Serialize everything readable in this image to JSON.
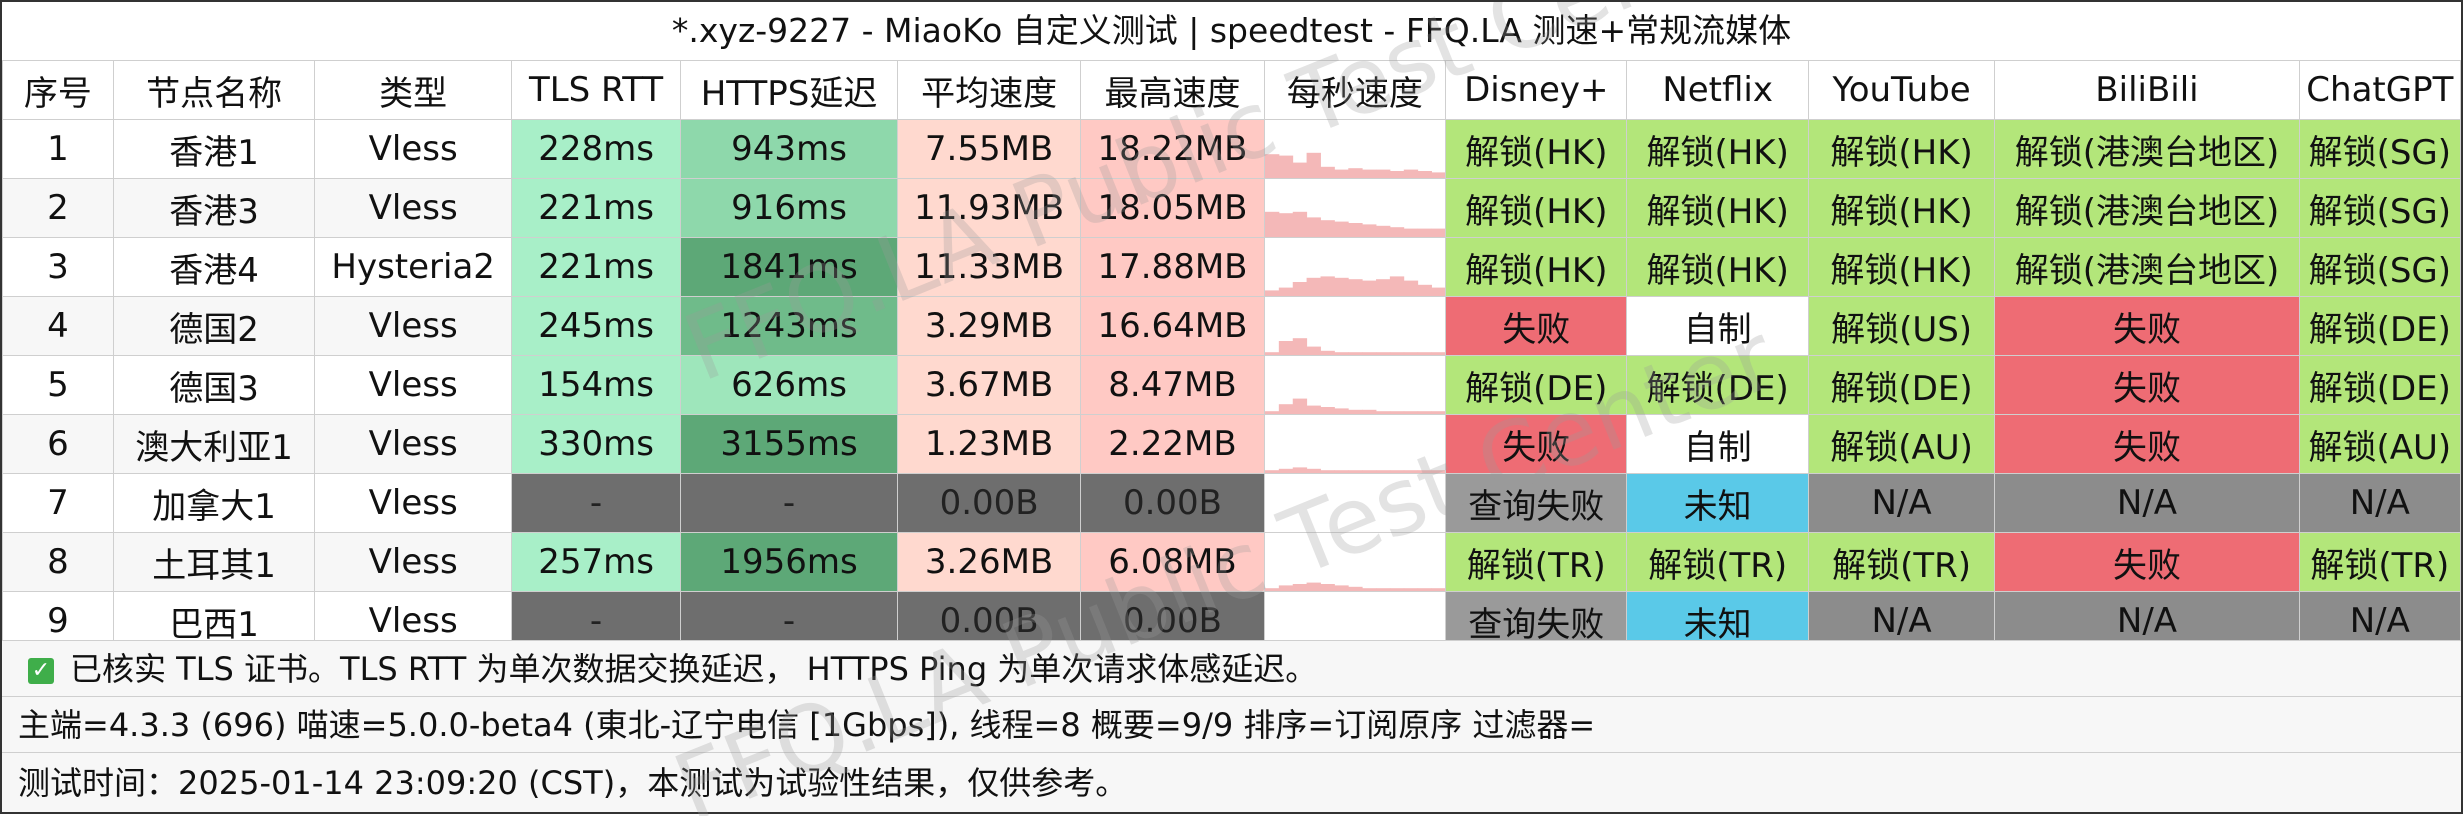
{
  "window": {
    "title": "*.xyz-9227 - MiaoKo 自定义测试 | speedtest - FFQ.LA 测速+常规流媒体"
  },
  "colors": {
    "tls_bg": "#a8efc8",
    "https_shades": [
      "#9ee6bb",
      "#8ed8ab",
      "#5da877",
      "#6fbb8a",
      "#3a8a59"
    ],
    "avg_bg": "#ffd9cf",
    "max_bg": "#ffc9c4",
    "fail_gray": "#6e6e6e",
    "unlock_green": "#b3e67a",
    "fail_red": "#ee6c74",
    "self_white": "#ffffff",
    "unknown_blue": "#5ac9e8",
    "na_gray": "#8c8c8c",
    "query_fail_gray": "#9a9a9a",
    "spark": "#f4b8b8"
  },
  "table": {
    "headers": [
      "序号",
      "节点名称",
      "类型",
      "TLS RTT",
      "HTTPS延迟",
      "平均速度",
      "最高速度",
      "每秒速度",
      "Disney+",
      "Netflix",
      "YouTube",
      "BiliBili",
      "ChatGPT"
    ],
    "rows": [
      {
        "id": "1",
        "name": "香港1",
        "type": "Vless",
        "tls": "228ms",
        "https": "943ms",
        "avg": "7.55MB",
        "max": "18.22MB",
        "disney": "解锁(HK)",
        "netflix": "解锁(HK)",
        "youtube": "解锁(HK)",
        "bilibili": "解锁(港澳台地区)",
        "chatgpt": "解锁(SG)"
      },
      {
        "id": "2",
        "name": "香港3",
        "type": "Vless",
        "tls": "221ms",
        "https": "916ms",
        "avg": "11.93MB",
        "max": "18.05MB",
        "disney": "解锁(HK)",
        "netflix": "解锁(HK)",
        "youtube": "解锁(HK)",
        "bilibili": "解锁(港澳台地区)",
        "chatgpt": "解锁(SG)"
      },
      {
        "id": "3",
        "name": "香港4",
        "type": "Hysteria2",
        "tls": "221ms",
        "https": "1841ms",
        "avg": "11.33MB",
        "max": "17.88MB",
        "disney": "解锁(HK)",
        "netflix": "解锁(HK)",
        "youtube": "解锁(HK)",
        "bilibili": "解锁(港澳台地区)",
        "chatgpt": "解锁(SG)"
      },
      {
        "id": "4",
        "name": "德国2",
        "type": "Vless",
        "tls": "245ms",
        "https": "1243ms",
        "avg": "3.29MB",
        "max": "16.64MB",
        "disney": "失败",
        "netflix": "自制",
        "youtube": "解锁(US)",
        "bilibili": "失败",
        "chatgpt": "解锁(DE)"
      },
      {
        "id": "5",
        "name": "德国3",
        "type": "Vless",
        "tls": "154ms",
        "https": "626ms",
        "avg": "3.67MB",
        "max": "8.47MB",
        "disney": "解锁(DE)",
        "netflix": "解锁(DE)",
        "youtube": "解锁(DE)",
        "bilibili": "失败",
        "chatgpt": "解锁(DE)"
      },
      {
        "id": "6",
        "name": "澳大利亚1",
        "type": "Vless",
        "tls": "330ms",
        "https": "3155ms",
        "avg": "1.23MB",
        "max": "2.22MB",
        "disney": "失败",
        "netflix": "自制",
        "youtube": "解锁(AU)",
        "bilibili": "失败",
        "chatgpt": "解锁(AU)"
      },
      {
        "id": "7",
        "name": "加拿大1",
        "type": "Vless",
        "tls": "-",
        "https": "-",
        "avg": "0.00B",
        "max": "0.00B",
        "disney": "查询失败",
        "netflix": "未知",
        "youtube": "N/A",
        "bilibili": "N/A",
        "chatgpt": "N/A"
      },
      {
        "id": "8",
        "name": "土耳其1",
        "type": "Vless",
        "tls": "257ms",
        "https": "1956ms",
        "avg": "3.26MB",
        "max": "6.08MB",
        "disney": "解锁(TR)",
        "netflix": "解锁(TR)",
        "youtube": "解锁(TR)",
        "bilibili": "失败",
        "chatgpt": "解锁(TR)"
      },
      {
        "id": "9",
        "name": "巴西1",
        "type": "Vless",
        "tls": "-",
        "https": "-",
        "avg": "0.00B",
        "max": "0.00B",
        "disney": "查询失败",
        "netflix": "未知",
        "youtube": "N/A",
        "bilibili": "N/A",
        "chatgpt": "N/A"
      }
    ]
  },
  "footer": {
    "tls_note": "已核实 TLS 证书。TLS RTT 为单次数据交换延迟， HTTPS Ping 为单次请求体感延迟。",
    "info": "主端=4.3.3 (696) 喵速=5.0.0-beta4 (東北-辽宁电信 [1Gbps]), 线程=8 概要=9/9 排序=订阅原序 过滤器=",
    "test_time": "测试时间：2025-01-14 23:09:20 (CST)，本测试为试验性结果，仅供参考。"
  },
  "watermark": "FFQ.LA Public Test Center"
}
